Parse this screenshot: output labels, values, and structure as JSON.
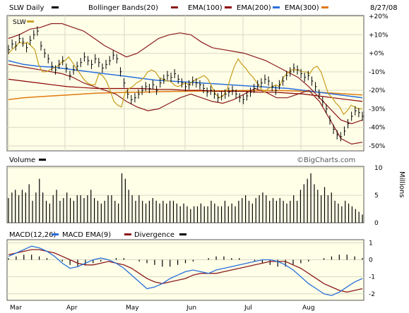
{
  "header": {
    "symbol_label": "SLW Daily",
    "bb_label": "Bollinger Bands(20)",
    "ema100_label": "EMA(100)",
    "ema200_label": "EMA(200)",
    "ema300_label": "EMA(300)",
    "date": "8/27/08"
  },
  "colors": {
    "background": "#ffffe8",
    "grid": "#d9d9c3",
    "frame": "#555555",
    "price_bar": "#000000",
    "relative": "#c9a227",
    "bollinger": "#8b1a1a",
    "ema100": "#8b0000",
    "ema200": "#2a6fdb",
    "ema300": "#e07a10",
    "macd_line": "#2a6fdb",
    "signal_line": "#8b1a1a",
    "divergence": "#000000"
  },
  "watermark": "©BigCharts.com",
  "chart_data": [
    {
      "type": "line",
      "panel": "price",
      "legend": "SLW",
      "y_ticks": [
        "+20%",
        "+10%",
        "+0%",
        "-10%",
        "-20%",
        "-30%",
        "-40%",
        "-50%"
      ],
      "ylim": [
        -50,
        20
      ],
      "x_ticks": [
        "Mar",
        "Apr",
        "May",
        "Jun",
        "Jul",
        "Aug"
      ],
      "bars_pct": [
        2,
        5,
        4,
        8,
        6,
        3,
        7,
        10,
        12,
        4,
        0,
        -3,
        -7,
        -9,
        -6,
        -4,
        -8,
        -12,
        -9,
        -7,
        -5,
        -2,
        -4,
        -6,
        -3,
        -5,
        -8,
        -6,
        -4,
        -1,
        -3,
        -10,
        -16,
        -22,
        -25,
        -24,
        -22,
        -20,
        -18,
        -19,
        -17,
        -20,
        -16,
        -14,
        -12,
        -13,
        -11,
        -14,
        -16,
        -18,
        -17,
        -15,
        -16,
        -17,
        -19,
        -21,
        -20,
        -22,
        -24,
        -23,
        -22,
        -21,
        -20,
        -22,
        -24,
        -25,
        -23,
        -21,
        -19,
        -17,
        -16,
        -14,
        -15,
        -18,
        -20,
        -17,
        -15,
        -12,
        -10,
        -8,
        -9,
        -11,
        -13,
        -12,
        -15,
        -18,
        -22,
        -26,
        -30,
        -36,
        -41,
        -44,
        -45,
        -42,
        -38,
        -34,
        -31,
        -32,
        -34
      ],
      "bb_upper": [
        8,
        10,
        13,
        14,
        16,
        16,
        14,
        12,
        8,
        4,
        1,
        -2,
        0,
        4,
        8,
        10,
        11,
        10,
        6,
        3,
        2,
        1,
        0,
        -2,
        -4,
        -7,
        -10,
        -13,
        -18,
        -24,
        -30,
        -36,
        -38,
        -36
      ],
      "bb_lower": [
        -6,
        -7,
        -8,
        -9,
        -10,
        -11,
        -13,
        -16,
        -18,
        -20,
        -22,
        -26,
        -29,
        -31,
        -30,
        -27,
        -24,
        -22,
        -24,
        -26,
        -27,
        -25,
        -22,
        -19,
        -21,
        -24,
        -24,
        -22,
        -20,
        -26,
        -36,
        -46,
        -49,
        -48
      ],
      "relative_pct": [
        0,
        2,
        4,
        6,
        5,
        6,
        4,
        2,
        -6,
        -10,
        -10,
        -9,
        -8,
        -7,
        -5,
        -4,
        -2,
        -5,
        -8,
        -11,
        -14,
        -16,
        -17,
        -17,
        -11,
        -12,
        -15,
        -20,
        -26,
        -28,
        -29,
        -21,
        -19,
        -18,
        -16,
        -15,
        -13,
        -10,
        -9,
        -10,
        -13,
        -14,
        -15,
        -15,
        -17,
        -18,
        -17,
        -16,
        -17,
        -15,
        -14,
        -13,
        -12,
        -14,
        -18,
        -22,
        -24,
        -23,
        -20,
        -13,
        -7,
        -3,
        -6,
        -8,
        -11,
        -13,
        -16,
        -19,
        -21,
        -19,
        -18,
        -17,
        -18,
        -13,
        -11,
        -9,
        -9,
        -9,
        -10,
        -10,
        -11,
        -8,
        -7,
        -10,
        -16,
        -22,
        -24,
        -27,
        -29,
        -33,
        -31,
        -28,
        -29,
        -30,
        -30
      ],
      "ema100": [
        -14,
        -15,
        -16,
        -17,
        -18,
        -18.5,
        -19,
        -19,
        -19,
        -19,
        -19.5,
        -19.5,
        -20,
        -20,
        -20.5,
        -20.5,
        -20.5,
        -21,
        -21,
        -21.5,
        -22,
        -23,
        -24,
        -25,
        -26
      ],
      "ema200": [
        -4,
        -6,
        -7,
        -7.5,
        -8.5,
        -9.5,
        -10.5,
        -11.5,
        -12.5,
        -13.5,
        -14.5,
        -15,
        -15.5,
        -16,
        -16.5,
        -17,
        -17.5,
        -18,
        -18.5,
        -19,
        -20,
        -21,
        -22,
        -23,
        -24
      ],
      "ema300": [
        -25,
        -24,
        -23.5,
        -23,
        -22.5,
        -22,
        -21.5,
        -21.3,
        -21.1,
        -21,
        -20.8,
        -20.6,
        -20.5,
        -20.4,
        -20.3,
        -20.2,
        -20.1,
        -20.1,
        -20.1,
        -20.2,
        -20.5,
        -21,
        -21.5,
        -22,
        -22.5
      ]
    },
    {
      "type": "bar",
      "panel": "volume",
      "legend": "Volume",
      "unit_label": "Millions",
      "y_ticks": [
        "10",
        "5",
        "0"
      ],
      "ylim": [
        0,
        10
      ],
      "values": [
        4.5,
        5.5,
        6,
        5,
        6,
        5.5,
        7,
        4,
        5.5,
        8,
        5.5,
        4,
        3.5,
        5,
        6,
        4,
        4.5,
        5.5,
        4.5,
        4,
        5,
        5,
        4.5,
        5,
        6,
        4.5,
        4,
        3.5,
        4,
        5,
        5,
        4,
        3.5,
        9,
        8,
        6,
        5,
        4,
        5,
        4,
        3.5,
        4,
        4.5,
        4,
        3.5,
        4,
        3.5,
        4,
        4,
        3.5,
        3,
        3.5,
        3,
        2.5,
        3,
        3,
        3.5,
        3,
        3,
        4,
        3.5,
        3,
        3,
        4,
        3,
        3.5,
        3,
        4,
        4.5,
        5,
        4,
        3.5,
        4.5,
        5,
        5.5,
        5,
        4,
        4.5,
        4,
        4.5,
        4,
        3.5,
        4,
        5,
        4,
        6,
        7,
        8,
        9,
        7,
        6,
        5,
        6.5,
        5,
        5.5,
        4,
        3.5,
        3,
        4,
        3.5,
        3,
        2.5,
        2,
        1.5
      ]
    },
    {
      "type": "line",
      "panel": "macd",
      "legend": [
        "MACD(12,26)",
        "MACD EMA(9)",
        "Divergence"
      ],
      "y_ticks": [
        "1",
        "0",
        "-1",
        "-2"
      ],
      "ylim": [
        -2.3,
        1.1
      ],
      "macd": [
        0.2,
        0.4,
        0.6,
        0.8,
        0.7,
        0.5,
        0.2,
        -0.2,
        -0.5,
        -0.4,
        -0.2,
        0.0,
        0.1,
        0.0,
        -0.2,
        -0.5,
        -0.9,
        -1.3,
        -1.7,
        -1.6,
        -1.4,
        -1.1,
        -0.9,
        -0.7,
        -0.6,
        -0.7,
        -0.8,
        -0.6,
        -0.5,
        -0.4,
        -0.3,
        -0.2,
        -0.1,
        0.0,
        0.0,
        -0.1,
        -0.3,
        -0.6,
        -1.0,
        -1.4,
        -1.7,
        -2.0,
        -2.1,
        -1.9,
        -1.6,
        -1.3,
        -1.1
      ],
      "signal": [
        0.3,
        0.4,
        0.5,
        0.6,
        0.6,
        0.5,
        0.4,
        0.2,
        0.0,
        -0.2,
        -0.3,
        -0.3,
        -0.2,
        -0.1,
        -0.2,
        -0.3,
        -0.5,
        -0.8,
        -1.1,
        -1.3,
        -1.4,
        -1.3,
        -1.2,
        -1.1,
        -0.9,
        -0.8,
        -0.8,
        -0.8,
        -0.7,
        -0.6,
        -0.5,
        -0.4,
        -0.3,
        -0.2,
        -0.1,
        -0.1,
        -0.1,
        -0.3,
        -0.5,
        -0.8,
        -1.1,
        -1.4,
        -1.6,
        -1.8,
        -1.9,
        -1.8,
        -1.7
      ],
      "divergence": [
        0.1,
        0.2,
        0.3,
        0.3,
        0.2,
        0.1,
        0.0,
        -0.1,
        -0.3,
        -0.4,
        -0.3,
        -0.2,
        -0.1,
        0.0,
        0.1,
        0.1,
        0.0,
        -0.1,
        -0.2,
        -0.3,
        -0.4,
        -0.4,
        -0.3,
        -0.2,
        -0.1,
        0.0,
        0.1,
        0.2,
        0.2,
        0.1,
        0.1,
        0.0,
        -0.1,
        -0.2,
        -0.3,
        -0.4,
        -0.4,
        -0.3,
        -0.2,
        -0.1,
        0.0,
        0.1,
        0.2,
        0.3,
        0.3,
        0.2,
        0.1
      ]
    }
  ]
}
